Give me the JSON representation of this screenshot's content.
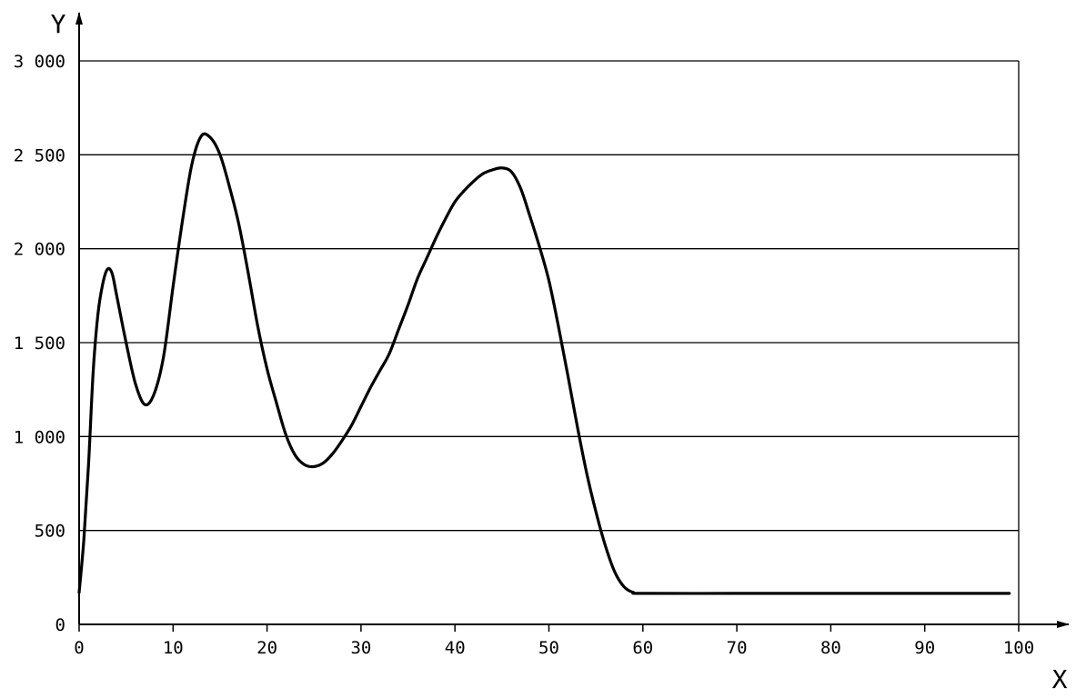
{
  "colors": {
    "background": "#ffffff",
    "line": "#000000",
    "grid": "#000000"
  },
  "chart_data": {
    "type": "line",
    "title": "",
    "xlabel": "X",
    "ylabel": "Y",
    "xlim": [
      0,
      100
    ],
    "ylim": [
      0,
      3000
    ],
    "grid": "horizontal",
    "x_ticks": [
      {
        "value": 0,
        "label": "0"
      },
      {
        "value": 10,
        "label": "10"
      },
      {
        "value": 20,
        "label": "20"
      },
      {
        "value": 30,
        "label": "30"
      },
      {
        "value": 40,
        "label": "40"
      },
      {
        "value": 50,
        "label": "50"
      },
      {
        "value": 60,
        "label": "60"
      },
      {
        "value": 70,
        "label": "70"
      },
      {
        "value": 80,
        "label": "80"
      },
      {
        "value": 90,
        "label": "90"
      },
      {
        "value": 100,
        "label": "100"
      }
    ],
    "y_ticks": [
      {
        "value": 0,
        "label": "0"
      },
      {
        "value": 500,
        "label": "500"
      },
      {
        "value": 1000,
        "label": "1 000"
      },
      {
        "value": 1500,
        "label": "1 500"
      },
      {
        "value": 2000,
        "label": "2 000"
      },
      {
        "value": 2500,
        "label": "2 500"
      },
      {
        "value": 3000,
        "label": "3 000"
      }
    ],
    "series": [
      {
        "x": [
          0,
          0.5,
          1,
          1.5,
          2,
          2.5,
          3,
          3.5,
          4,
          5,
          6,
          7,
          8,
          9,
          10,
          11,
          12,
          13,
          14,
          15,
          16,
          17,
          18,
          19,
          20,
          21,
          22,
          23,
          24,
          25,
          26,
          27,
          28,
          29,
          30,
          31,
          32,
          33,
          34,
          35,
          36,
          37,
          38,
          39,
          40,
          41,
          42,
          43,
          44,
          45,
          46,
          47,
          48,
          49,
          50,
          51,
          52,
          53,
          54,
          55,
          56,
          57,
          58,
          59,
          60,
          70,
          80,
          90,
          99
        ],
        "y": [
          170,
          450,
          850,
          1350,
          1650,
          1810,
          1890,
          1870,
          1750,
          1500,
          1280,
          1170,
          1230,
          1430,
          1800,
          2150,
          2450,
          2600,
          2590,
          2500,
          2330,
          2130,
          1870,
          1590,
          1360,
          1180,
          1010,
          900,
          850,
          840,
          860,
          910,
          980,
          1060,
          1160,
          1260,
          1350,
          1440,
          1570,
          1700,
          1840,
          1950,
          2060,
          2160,
          2250,
          2310,
          2360,
          2400,
          2420,
          2430,
          2410,
          2320,
          2170,
          2010,
          1830,
          1590,
          1330,
          1060,
          810,
          600,
          420,
          280,
          200,
          170,
          165,
          165,
          165,
          165,
          165
        ]
      }
    ]
  }
}
